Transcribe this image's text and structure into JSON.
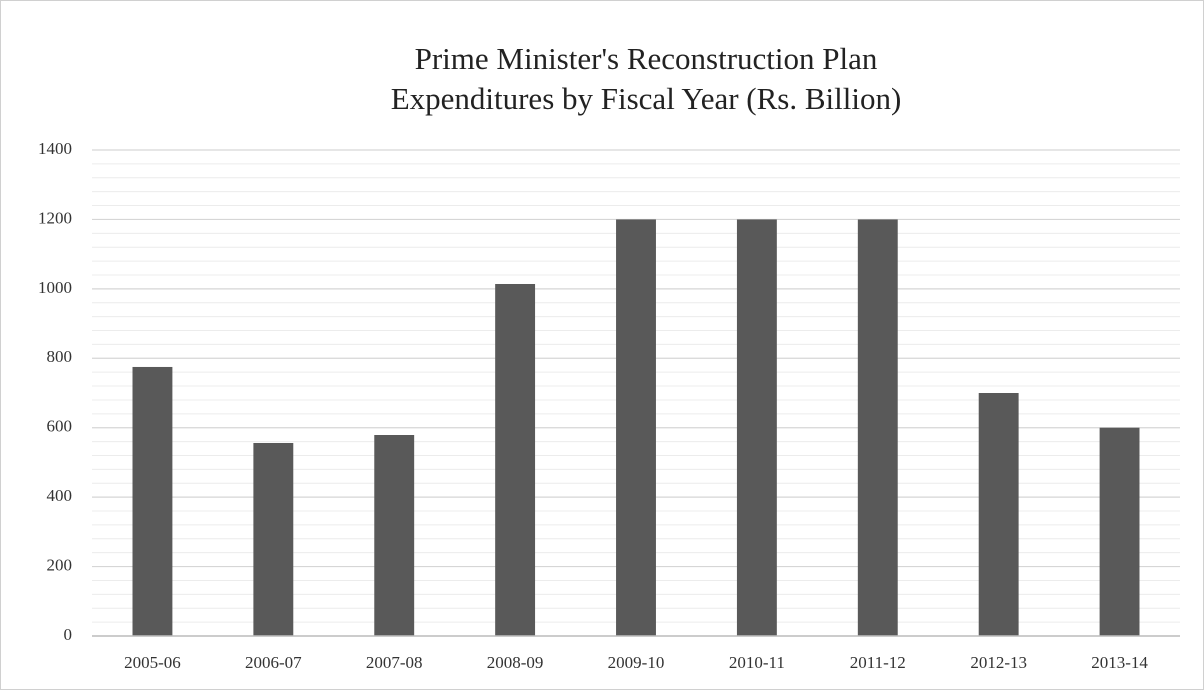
{
  "chart_data": {
    "type": "bar",
    "title": "Prime Minister's Reconstruction Plan",
    "subtitle": "Expenditures by Fiscal Year (Rs. Billion)",
    "categories": [
      "2005-06",
      "2006-07",
      "2007-08",
      "2008-09",
      "2009-10",
      "2010-11",
      "2011-12",
      "2012-13",
      "2013-14"
    ],
    "values": [
      775,
      556,
      579,
      1014,
      1200,
      1200,
      1200,
      700,
      600
    ],
    "color": "#595959",
    "ylim": [
      0,
      1400
    ],
    "yticks": [
      0,
      200,
      400,
      600,
      800,
      1000,
      1200,
      1400
    ],
    "grid": true,
    "minor_grid": true
  }
}
